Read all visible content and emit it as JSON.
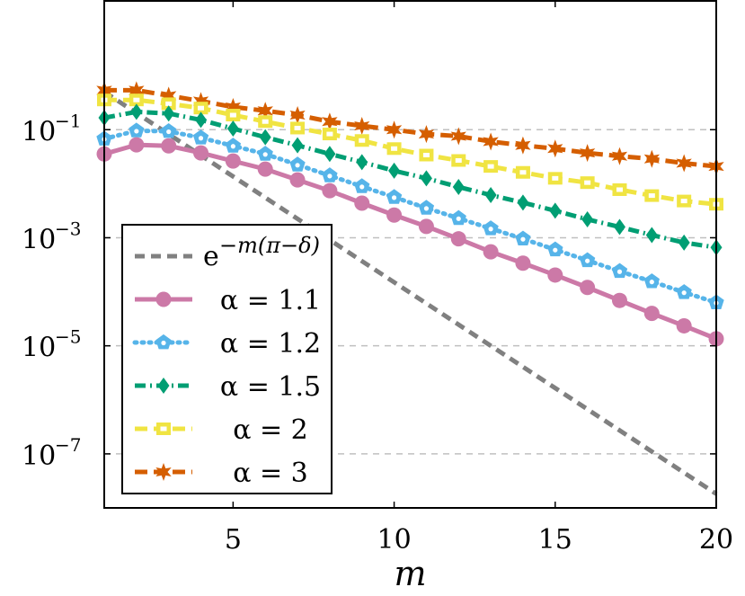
{
  "chart_data": {
    "type": "line",
    "xlabel": "m",
    "ylabel": "",
    "xlim": [
      1,
      20
    ],
    "ylim_exp": [
      -8.0,
      1.4
    ],
    "yscale": "log",
    "grid": "horizontal dashed at y-ticks",
    "legend_position": "bottom-left",
    "x_ticks": [
      5,
      10,
      15,
      20
    ],
    "y_ticks": [
      {
        "base": "10",
        "exp": "−1",
        "value_exp": -1
      },
      {
        "base": "10",
        "exp": "−3",
        "value_exp": -3
      },
      {
        "base": "10",
        "exp": "−5",
        "value_exp": -5
      },
      {
        "base": "10",
        "exp": "−7",
        "value_exp": -7
      }
    ],
    "reference": {
      "label_base": "e",
      "label_exp": "−m(π−δ)",
      "color": "#808080",
      "x": [
        1,
        20
      ],
      "log10_y": [
        -0.3,
        -7.74
      ]
    },
    "series": [
      {
        "name": "α = 1.1",
        "color": "#CC79A7",
        "marker": "circle",
        "dash": "solid",
        "x": [
          1,
          2,
          3,
          4,
          5,
          6,
          7,
          8,
          9,
          10,
          11,
          12,
          13,
          14,
          15,
          16,
          17,
          18,
          19,
          20
        ],
        "log10_y": [
          -1.45,
          -1.28,
          -1.3,
          -1.43,
          -1.58,
          -1.73,
          -1.93,
          -2.13,
          -2.36,
          -2.58,
          -2.79,
          -3.02,
          -3.26,
          -3.47,
          -3.69,
          -3.92,
          -4.16,
          -4.4,
          -4.63,
          -4.87
        ]
      },
      {
        "name": "α = 1.2",
        "color": "#56B4E9",
        "marker": "pentagon",
        "dash": "dotted",
        "x": [
          1,
          2,
          3,
          4,
          5,
          6,
          7,
          8,
          9,
          10,
          11,
          12,
          13,
          14,
          15,
          16,
          17,
          18,
          19,
          20
        ],
        "log10_y": [
          -1.17,
          -1.02,
          -1.03,
          -1.15,
          -1.3,
          -1.45,
          -1.65,
          -1.85,
          -2.05,
          -2.25,
          -2.45,
          -2.64,
          -2.83,
          -3.02,
          -3.22,
          -3.42,
          -3.62,
          -3.81,
          -4.01,
          -4.2
        ]
      },
      {
        "name": "α = 1.5",
        "color": "#009E73",
        "marker": "diamond",
        "dash": "dashdot",
        "x": [
          1,
          2,
          3,
          4,
          5,
          6,
          7,
          8,
          9,
          10,
          11,
          12,
          13,
          14,
          15,
          16,
          17,
          18,
          19,
          20
        ],
        "log10_y": [
          -0.78,
          -0.67,
          -0.7,
          -0.82,
          -0.98,
          -1.14,
          -1.29,
          -1.45,
          -1.6,
          -1.76,
          -1.9,
          -2.06,
          -2.21,
          -2.35,
          -2.5,
          -2.66,
          -2.8,
          -2.95,
          -3.09,
          -3.18
        ]
      },
      {
        "name": "α = 2",
        "color": "#F0E442",
        "marker": "square",
        "dash": "dashed",
        "x": [
          1,
          2,
          3,
          4,
          5,
          6,
          7,
          8,
          9,
          10,
          11,
          12,
          13,
          14,
          15,
          16,
          17,
          18,
          19,
          20
        ],
        "log10_y": [
          -0.45,
          -0.45,
          -0.52,
          -0.6,
          -0.73,
          -0.85,
          -0.97,
          -1.08,
          -1.2,
          -1.35,
          -1.47,
          -1.57,
          -1.68,
          -1.79,
          -1.9,
          -1.98,
          -2.11,
          -2.22,
          -2.32,
          -2.38
        ]
      },
      {
        "name": "α = 3",
        "color": "#D55E00",
        "marker": "star",
        "dash": "dashed",
        "x": [
          1,
          2,
          3,
          4,
          5,
          6,
          7,
          8,
          9,
          10,
          11,
          12,
          13,
          14,
          15,
          16,
          17,
          18,
          19,
          20
        ],
        "log10_y": [
          -0.27,
          -0.27,
          -0.37,
          -0.47,
          -0.58,
          -0.65,
          -0.73,
          -0.85,
          -0.93,
          -1.0,
          -1.08,
          -1.12,
          -1.22,
          -1.29,
          -1.35,
          -1.43,
          -1.49,
          -1.54,
          -1.62,
          -1.68
        ]
      }
    ]
  }
}
